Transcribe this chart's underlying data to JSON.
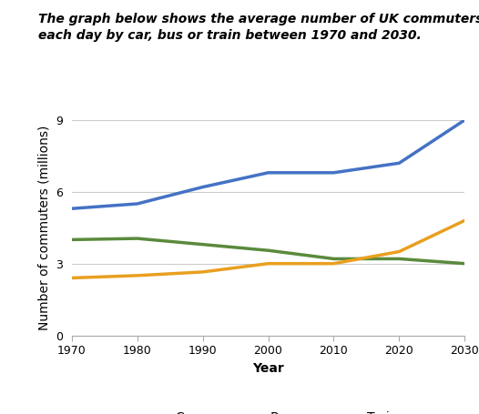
{
  "title": "The graph below shows the average number of UK commuters travelling\neach day by car, bus or train between 1970 and 2030.",
  "xlabel": "Year",
  "ylabel": "Number of commuters (millions)",
  "years": [
    1970,
    1980,
    1990,
    2000,
    2010,
    2020,
    2030
  ],
  "car": [
    5.3,
    5.5,
    6.2,
    6.8,
    6.8,
    7.2,
    9.0
  ],
  "bus": [
    4.0,
    4.05,
    3.8,
    3.55,
    3.2,
    3.2,
    3.0
  ],
  "train": [
    2.4,
    2.5,
    2.65,
    3.0,
    3.0,
    3.5,
    4.8
  ],
  "car_color": "#4472c4",
  "bus_color": "#5a8a3c",
  "train_color": "#e8a020",
  "bg_color": "#ffffff",
  "grid_color": "#cccccc",
  "ylim": [
    0,
    9
  ],
  "yticks": [
    0,
    3,
    6,
    9
  ],
  "xticks": [
    1970,
    1980,
    1990,
    2000,
    2010,
    2020,
    2030
  ],
  "legend_labels": [
    "Car",
    "Bus",
    "Train"
  ],
  "title_fontsize": 10,
  "axis_label_fontsize": 10,
  "tick_fontsize": 9,
  "legend_fontsize": 10,
  "line_width": 2.5
}
